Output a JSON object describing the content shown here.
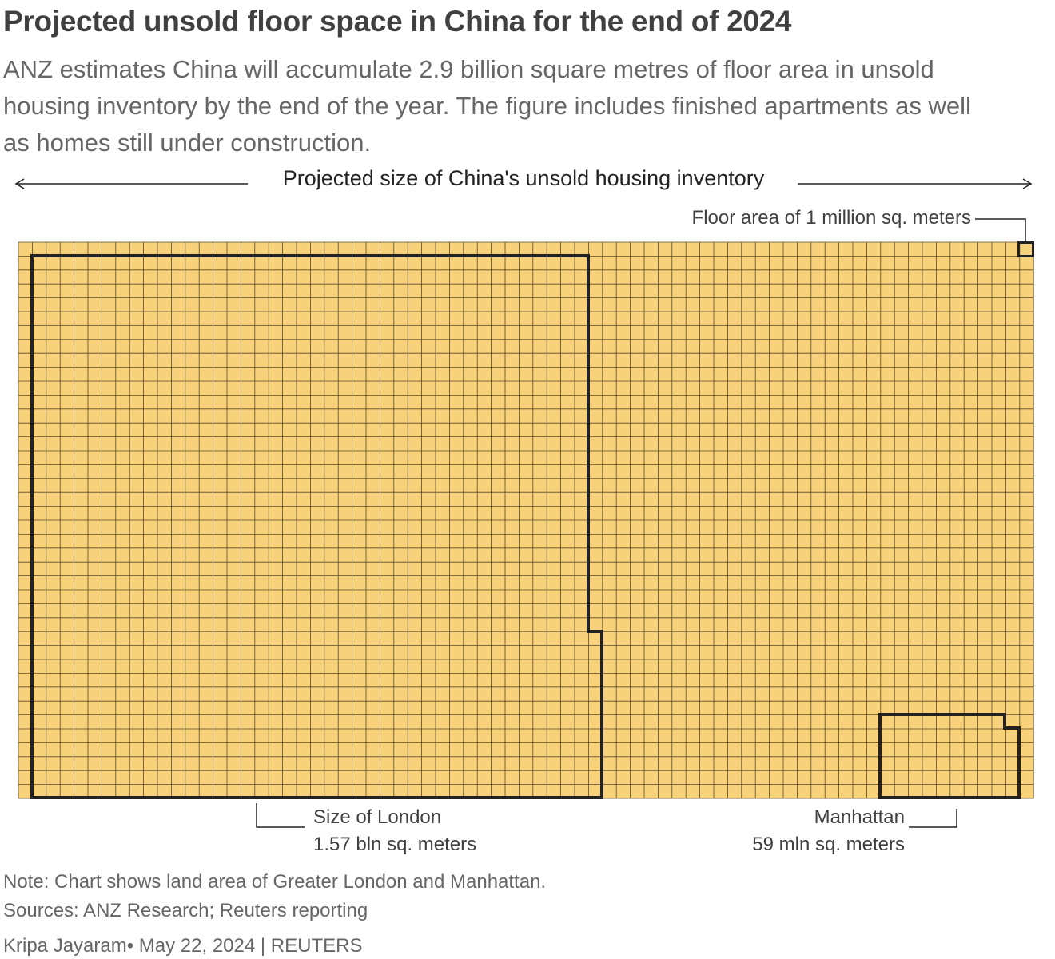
{
  "header": {
    "title": "Projected unsold floor space in China for the end of 2024",
    "subtitle_lines": [
      "ANZ estimates China will accumulate 2.9 billion square metres of floor area in unsold",
      "housing inventory by the end of the year. The figure includes finished apartments as well",
      "as homes still under construction."
    ]
  },
  "chart_data": {
    "type": "waffle",
    "span_label": "Projected size of China's unsold housing inventory",
    "unit_label": "Floor area of 1 million sq. meters",
    "grid_color": "#f8d27a",
    "outline_color": "#222222",
    "annotations": [
      {
        "name": "Size of London",
        "value_text": "1.57 bln sq. meters"
      },
      {
        "name": "Manhattan",
        "value_text": "59 mln sq. meters"
      }
    ]
  },
  "footer": {
    "note": "Note: Chart shows land area of Greater London and Manhattan.",
    "sources": "Sources: ANZ Research; Reuters reporting",
    "credit": "Kripa Jayaram• May 22, 2024 | REUTERS"
  }
}
